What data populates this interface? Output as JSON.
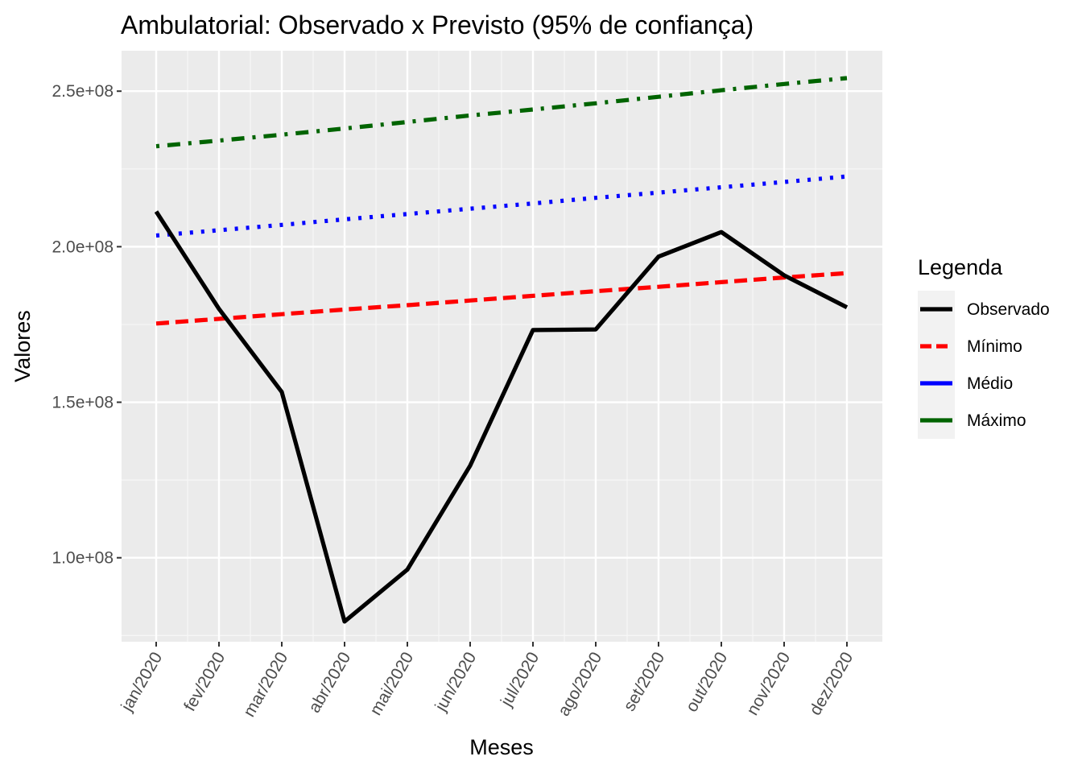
{
  "chart_data": {
    "type": "line",
    "title": "Ambulatorial: Observado x Previsto (95% de confiança)",
    "xlabel": "Meses",
    "ylabel": "Valores",
    "categories": [
      "jan/2020",
      "fev/2020",
      "mar/2020",
      "abr/2020",
      "mai/2020",
      "jun/2020",
      "jul/2020",
      "ago/2020",
      "set/2020",
      "out/2020",
      "nov/2020",
      "dez/2020"
    ],
    "y_ticks": [
      100000000,
      150000000,
      200000000,
      250000000
    ],
    "y_tick_labels": [
      "1.0e+08",
      "1.5e+08",
      "2.0e+08",
      "2.5e+08"
    ],
    "ylim": [
      73000000,
      263000000
    ],
    "grid": true,
    "legend": {
      "title": "Legenda",
      "position": "right"
    },
    "series": [
      {
        "name": "Observado",
        "color": "#000000",
        "dash": "solid",
        "values": [
          211300000,
          180000000,
          153300000,
          79500000,
          96200000,
          129600000,
          173200000,
          173400000,
          196800000,
          204700000,
          190800000,
          180500000
        ]
      },
      {
        "name": "Mínimo",
        "color": "#ff0000",
        "dash": "dashed",
        "values": [
          175300000,
          176800000,
          178300000,
          179800000,
          181200000,
          182700000,
          184200000,
          185700000,
          187100000,
          188600000,
          190100000,
          191500000
        ]
      },
      {
        "name": "Médio",
        "color": "#0000ff",
        "dash": "dotted",
        "values": [
          203600000,
          205300000,
          207000000,
          208800000,
          210500000,
          212200000,
          213900000,
          215700000,
          217400000,
          219100000,
          220800000,
          222600000
        ]
      },
      {
        "name": "Máximo",
        "color": "#006400",
        "dash": "dotdash",
        "values": [
          232300000,
          234100000,
          236000000,
          238000000,
          240100000,
          242200000,
          244100000,
          246100000,
          248200000,
          250300000,
          252300000,
          254200000
        ]
      }
    ]
  }
}
